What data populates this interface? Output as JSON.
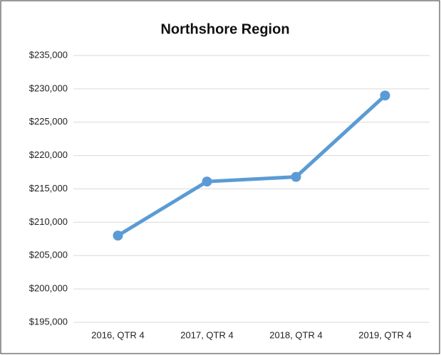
{
  "chart_data": {
    "type": "line",
    "title": "Northshore Region",
    "categories": [
      "2016, QTR 4",
      "2017, QTR 4",
      "2018, QTR 4",
      "2019, QTR 4"
    ],
    "series": [
      {
        "name": "Northshore Region",
        "color": "#5b9bd5",
        "values": [
          208000,
          216100,
          216800,
          229000
        ]
      }
    ],
    "ylim": [
      195000,
      235000
    ],
    "yticks": [
      {
        "value": 195000,
        "label": "$195,000"
      },
      {
        "value": 200000,
        "label": "$200,000"
      },
      {
        "value": 205000,
        "label": "$205,000"
      },
      {
        "value": 210000,
        "label": "$210,000"
      },
      {
        "value": 215000,
        "label": "$215,000"
      },
      {
        "value": 220000,
        "label": "$220,000"
      },
      {
        "value": 225000,
        "label": "$225,000"
      },
      {
        "value": 230000,
        "label": "$230,000"
      },
      {
        "value": 235000,
        "label": "$235,000"
      }
    ],
    "grid": true
  }
}
